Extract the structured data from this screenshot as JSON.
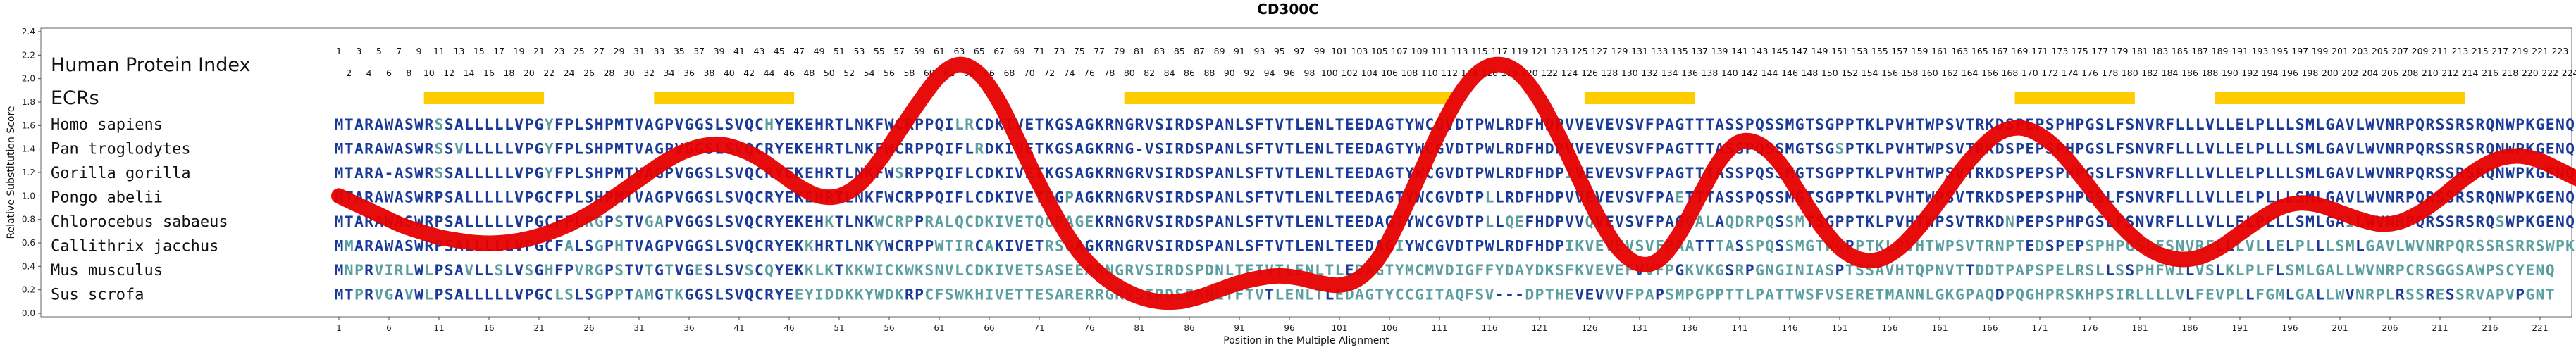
{
  "chart_data": {
    "type": "line",
    "title": "CD300C",
    "xlabel": "Position in the Multiple Alignment",
    "ylabel": "Relative Substitution Score",
    "ylim": [
      0,
      2.4
    ],
    "yticks": [
      0.0,
      0.2,
      0.4,
      0.6,
      0.8,
      1.0,
      1.2,
      1.4,
      1.6,
      1.8,
      2.0,
      2.2,
      2.4
    ],
    "xticks": [
      1,
      6,
      11,
      16,
      21,
      26,
      31,
      36,
      41,
      46,
      51,
      56,
      61,
      66,
      71,
      76,
      81,
      86,
      91,
      96,
      101,
      106,
      111,
      116,
      121,
      126,
      131,
      136,
      141,
      146,
      151,
      156,
      161,
      166,
      171,
      176,
      181,
      186,
      191,
      196,
      201,
      206,
      211,
      216,
      221
    ],
    "xlim": [
      1,
      227
    ],
    "header_label": "Human Protein Index",
    "ecr_label": "ECRs",
    "protein_index_max": 224,
    "ecr_ranges": [
      [
        10,
        21
      ],
      [
        33,
        46
      ],
      [
        80,
        112
      ],
      [
        126,
        136
      ],
      [
        169,
        180
      ],
      [
        189,
        213
      ]
    ],
    "species": [
      {
        "name": "Homo sapiens",
        "seq": "MTARAWASWRSSALLLLLVPGYFPLSHPMTVAGPVGGSLSVQCHYEKEHRTLNKFWCRPPQILRCDKIVETKGSAGKRNGRVSIRDSPANLSFTVTLENLTEEDAGTYWCGVDTPWLRDFHDPVVEVEVSVFPAGTTTASSPQSSMGTSGPPTKLPVHTWPSVTRKDSPEPSPHPGSLFSNVRFLLLVLLELPLLLSMLGAVLWVNRPQRSSRSRQNWPKGENQ"
      },
      {
        "name": "Pan troglodytes",
        "seq": "MTARAWASWRSSVLLLLLVPGYFPLSHPMTVAGPVGGSLSVQCRYEKEHRTLNKFWCRPPQIFLRDKIVETKGSAGKRNG-VSIRDSPANLSFTVTLENLTEEDAGTYWCGVDTPWLRDFHDPVVEVEVSVFPAGTTTASSPQSSMGTSGSPTKLPVHTWPSVTRKDSPEPSPHPGSLFSNVRFLLLVLLELPLLLSMLGAVLWVNRPQRSSRSRQNWPKGENQ"
      },
      {
        "name": "Gorilla gorilla",
        "seq": "MTARA-ASWRSSALLLLLVPGYFPLSHPMTVAGPVGGSLSVQCRYEKEHRTLNKFWSRPPQIFLCDKIVETKGSAGKRNGRVSIRDSPANLSFTVTLENLTEEDAGTYWCGVDTPWLRDFHDPIVEVEVSVFPAGTTTASSPQSSMGTSGPPTKLPVHTWPSVTRKDSPEPSPHPGSLFSNVRFLLLVLLELPLLLSMLGAVLWVNRPQRSSRSRQNWPKGENQ"
      },
      {
        "name": "Pongo abelii",
        "seq": "MTARAWASWRPSALLLLLVPGCFPLSHPMTVAGPVGGSLSVQCRYEKEHRTLNKFWCRPPQIFLCDKIVETEGPAGKRNGRVSIRDSPANLSFTVTLENLTEEDAGTYWCGVDTPLLRDFHDPVVEVEVSVFPAETTTASSPQSSMGTSGPPTKLPVHTWPSVTRKDSPEPSPHPGSLFSNVRFLLLVLLELPLLLSMLGAVLWVNRPQRSSRSRQNWPKGENQ"
      },
      {
        "name": "Chlorocebus sabaeus",
        "seq": "MTARAWASWRPSALLLLLVPGCFPLRGPSTVGAPVGGSLSVQCRYEKEHKTLNKWCRPPRALQCDKIVETQGPAGEKRNGRVSIRDSPANLSFTVTLENLTEEDAGIYWCGVDTPLLQEFHDPVVQVEVSVFPAGGALAQDRPQSSMTSGPPTKLPVHTWPSVTRKDNPEPSPHPGSLFSNVRFLLLVLLELPLLLSMLGAILWVNRPQRSSRSRQSWPKGENQ"
      },
      {
        "name": "Callithrix jacchus",
        "seq": "MMARAWASWRPSALLLLLVPGCFALSGPHTVAGPVGGSLSVQCRYEKKHRTLNKYWCRPPWTIRCAKIVETRSGAGKRNGRVSIRDSPANLSFTVTLENLTEEDAGIYWCGVDTPWLRDFHDPIKVEVEVSVFPAATTTASSPQSSMGTWGPPTKLPVHTWPSVTRNPTEDSPEPSPHPGSLFSNVRFLLLVLLELPLLLSMLGAVLWVNRPQRSSRSRRSWPKGENQ"
      },
      {
        "name": "Mus musculus",
        "seq": "MNPRVIRLWLPSAVLLSLVSGHFPVRGPSTVTGTVGESLSVSCQYEKKLKTKKWICKWKSNVLCDKIVETSASEEARNGRVSIRDSPDNLTFTVTLENLTLEDAGTYMCMVDIGFFYDAYDKSFKVEVEFVVFPGKVKGSRPGNGINIASPTSSAVHTQPNVTTDDTPAPSPELRSLLSSPHFWILVSLKLPLFLSMLGALLWVNRPCRSGGSAWPSCYENQ"
      },
      {
        "name": "Sus scrofa",
        "seq": "MTPRVGAVWLPSALLLLLVPGCLSLSGPPTAMGTKGGSLSVQCRYEEYIDDKKYWDKRPCFSWKHIVETTESARERRGRVSIRDSPANLTFTVTLENLTLEDAGTYCCGITAQFSV---DPTHEVEVVVFPAPSMPGPPTTLPATTWSFVSERETMANNLGKGPAQDPQGHPRSKHPSIRLLLLVLFEVPLLFGMLGALLWVNRPLRSSRESSRVAPVPGNT"
      }
    ],
    "curve": {
      "x": [
        1,
        3,
        5,
        7,
        9,
        11,
        13,
        15,
        17,
        19,
        21,
        23,
        25,
        27,
        29,
        31,
        33,
        35,
        37,
        39,
        41,
        43,
        45,
        47,
        49,
        51,
        53,
        55,
        57,
        59,
        61,
        63,
        65,
        67,
        69,
        71,
        73,
        75,
        77,
        79,
        81,
        83,
        85,
        87,
        89,
        91,
        93,
        95,
        97,
        99,
        101,
        103,
        105,
        107,
        109,
        111,
        113,
        115,
        117,
        119,
        121,
        123,
        125,
        127,
        129,
        131,
        133,
        135,
        137,
        139,
        141,
        143,
        145,
        147,
        149,
        151,
        153,
        155,
        157,
        159,
        161,
        163,
        165,
        167,
        169,
        171,
        173,
        175,
        177,
        179,
        181,
        183,
        185,
        187,
        189,
        191,
        193,
        195,
        197,
        199,
        201,
        203,
        205,
        207,
        209,
        211,
        213,
        215,
        217,
        219,
        221,
        223,
        225,
        227
      ],
      "y": [
        1.0,
        0.92,
        0.84,
        0.76,
        0.7,
        0.65,
        0.62,
        0.6,
        0.6,
        0.62,
        0.66,
        0.72,
        0.8,
        0.9,
        1.02,
        1.14,
        1.26,
        1.36,
        1.42,
        1.44,
        1.4,
        1.32,
        1.2,
        1.08,
        1.0,
        1.0,
        1.1,
        1.3,
        1.55,
        1.8,
        2.02,
        2.12,
        2.04,
        1.8,
        1.45,
        1.1,
        0.78,
        0.52,
        0.34,
        0.22,
        0.14,
        0.1,
        0.1,
        0.14,
        0.2,
        0.26,
        0.3,
        0.32,
        0.3,
        0.26,
        0.24,
        0.3,
        0.48,
        0.8,
        1.18,
        1.55,
        1.86,
        2.06,
        2.12,
        2.04,
        1.82,
        1.5,
        1.14,
        0.8,
        0.54,
        0.42,
        0.46,
        0.68,
        1.0,
        1.3,
        1.46,
        1.44,
        1.28,
        1.02,
        0.76,
        0.56,
        0.46,
        0.46,
        0.56,
        0.74,
        0.96,
        1.2,
        1.4,
        1.54,
        1.58,
        1.52,
        1.38,
        1.18,
        0.96,
        0.76,
        0.6,
        0.5,
        0.46,
        0.48,
        0.56,
        0.68,
        0.8,
        0.9,
        0.94,
        0.92,
        0.86,
        0.8,
        0.76,
        0.78,
        0.86,
        0.98,
        1.12,
        1.24,
        1.32,
        1.34,
        1.3,
        1.22,
        1.14,
        1.1
      ]
    },
    "colors": {
      "curve": "#e60000",
      "ecr": "#ffcc00",
      "conserved": "#1a3a99",
      "variable": "#5b9ea0",
      "seq_gap": "#1a3a99"
    }
  }
}
